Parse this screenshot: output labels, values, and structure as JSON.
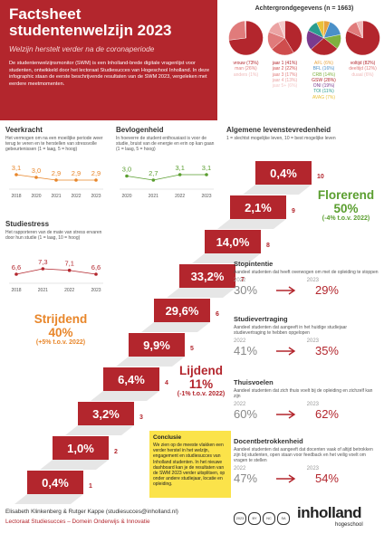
{
  "header": {
    "title": "Factsheet studentenwelzijn 2023",
    "subtitle": "Welzijn herstelt verder na de coronaperiode",
    "intro": "De studentenwelzijnsmonitor (SWM) is een Inholland-brede digitale vragenlijst voor studenten, ontwikkeld door het lectoraat Studiesucces van Hogeschool Inholland. In deze infographic staan de eerste beschrijvende resultaten van de SWM 2023, vergeleken met eerdere meetmomenten."
  },
  "background": {
    "title": "Achtergrondgegevens (n = 1663)",
    "pies": [
      {
        "slices": [
          {
            "label": "vrouw (73%)",
            "value": 73,
            "color": "#b3262d"
          },
          {
            "label": "man (26%)",
            "value": 26,
            "color": "#e07b7b"
          },
          {
            "label": "anders (1%)",
            "value": 1,
            "color": "#efb9b9"
          }
        ]
      },
      {
        "slices": [
          {
            "label": "jaar 1 (41%)",
            "value": 41,
            "color": "#b3262d"
          },
          {
            "label": "jaar 2 (22%)",
            "value": 22,
            "color": "#cf4d4d"
          },
          {
            "label": "jaar 3 (17%)",
            "value": 17,
            "color": "#e07b7b"
          },
          {
            "label": "jaar 4 (13%)",
            "value": 13,
            "color": "#eba3a3"
          },
          {
            "label": "jaar 5+ (6%)",
            "value": 6,
            "color": "#f3c9c9"
          }
        ]
      },
      {
        "slices": [
          {
            "label": "AFL (6%)",
            "value": 6,
            "color": "#e8a33d"
          },
          {
            "label": "BFL (16%)",
            "value": 16,
            "color": "#4a90c8"
          },
          {
            "label": "CRB (14%)",
            "value": 14,
            "color": "#7fb13f"
          },
          {
            "label": "GSW (28%)",
            "value": 28,
            "color": "#b3262d"
          },
          {
            "label": "ONI (19%)",
            "value": 19,
            "color": "#7a3b8f"
          },
          {
            "label": "TOI (11%)",
            "value": 11,
            "color": "#2a9d8f"
          },
          {
            "label": "AVAG (7%)",
            "value": 7,
            "color": "#e9c13a"
          }
        ]
      },
      {
        "slices": [
          {
            "label": "voltijd (82%)",
            "value": 82,
            "color": "#b3262d"
          },
          {
            "label": "deeltijd (12%)",
            "value": 12,
            "color": "#e07b7b"
          },
          {
            "label": "duaal (6%)",
            "value": 6,
            "color": "#efb9b9"
          }
        ]
      }
    ]
  },
  "indicators": [
    {
      "title": "Veerkracht",
      "description": "Het vermogen om na een moeilijke periode weer terug te veren en te herstellen van stressvolle gebeurtenissen (1 = laag, 5 = hoog)",
      "color": "#e8862a",
      "years": [
        2018,
        2020,
        2021,
        2022,
        2023
      ],
      "values": [
        3.1,
        3.0,
        2.9,
        2.9,
        2.9
      ],
      "value_labels": [
        "3,1",
        "3,0",
        "2,9",
        "2,9",
        "2,9"
      ]
    },
    {
      "title": "Bevlogenheid",
      "description": "In hoeverre de student enthousiast is voor de studie, bruist van de energie en erin op kan gaan (1 = laag, 5 = hoog)",
      "color": "#5a9e2f",
      "years": [
        2020,
        2021,
        2022,
        2023
      ],
      "values": [
        3.0,
        2.7,
        3.1,
        3.1
      ],
      "value_labels": [
        "3,0",
        "2,7",
        "3,1",
        "3,1"
      ]
    },
    {
      "title": "Studiestress",
      "description": "Het rapporteren van de mate van stress ervaren door hun studie (1 = laag, 10 = hoog)",
      "color": "#b3262d",
      "years": [
        2018,
        2021,
        2022,
        2023
      ],
      "values": [
        6.6,
        7.3,
        7.1,
        6.6
      ],
      "value_labels": [
        "6,6",
        "7,3",
        "7,1",
        "6,6"
      ]
    }
  ],
  "life_satisfaction": {
    "title": "Algemene levenstevredenheid",
    "subtitle": "1 = slechtst mogelijke leven, 10 = best mogelijke leven",
    "levels": [
      {
        "level": "1",
        "share": "0,4%"
      },
      {
        "level": "2",
        "share": "1,0%"
      },
      {
        "level": "3",
        "share": "3,2%"
      },
      {
        "level": "4",
        "share": "6,4%"
      },
      {
        "level": "5",
        "share": "9,9%"
      },
      {
        "level": "6",
        "share": "29,6%"
      },
      {
        "level": "7",
        "share": "33,2%"
      },
      {
        "level": "8",
        "share": "14,0%"
      },
      {
        "level": "9",
        "share": "2,1%"
      },
      {
        "level": "10",
        "share": "0,4%"
      }
    ],
    "groups": [
      {
        "name": "Florerend",
        "share": "50%",
        "change": "(-4% t.o.v. 2022)",
        "color": "#5a9e2f"
      },
      {
        "name": "Strijdend",
        "share": "40%",
        "change": "(+5% t.o.v. 2022)",
        "color": "#e8862a"
      },
      {
        "name": "Lijdend",
        "share": "11%",
        "change": "(-1% t.o.v. 2022)",
        "color": "#b3262d"
      }
    ]
  },
  "outcomes": [
    {
      "title": "Stopintentie",
      "description": "Aandeel studenten dat heeft overwogen om met de opleiding te stoppen",
      "years": [
        "2022",
        "2023"
      ],
      "values": [
        "30%",
        "29%"
      ]
    },
    {
      "title": "Studievertraging",
      "description": "Aandeel studenten dat aangeeft in het huidige studiejaar studievertraging te hebben opgelopen",
      "years": [
        "2022",
        "2023"
      ],
      "values": [
        "41%",
        "35%"
      ]
    },
    {
      "title": "Thuisvoelen",
      "description": "Aandeel studenten dat zich thuis voelt bij de opleiding en zichzelf kan zijn",
      "years": [
        "2022",
        "2023"
      ],
      "values": [
        "60%",
        "62%"
      ]
    },
    {
      "title": "Docentbetrokkenheid",
      "description": "Aandeel studenten dat aangeeft dat docenten vaak of altijd betrokken zijn bij studenten, open staan voor feedback en het veilig voelt om vragen te stellen",
      "years": [
        "2022",
        "2023"
      ],
      "values": [
        "47%",
        "54%"
      ]
    }
  ],
  "conclusion": {
    "title": "Conclusie",
    "text": "We zien op de meeste vlakken een verder herstel in het welzijn, engagement en studiesucces van Inholland studenten. In het nieuwe dashboard kan je de resultaten van de SWM 2023 verder uitsplitsen, op onder andere studiejaar, locatie en opleiding."
  },
  "footer": {
    "authors": "Elisabeth Klinkenberg & Rutger Kappe (studiesucces@inholland.nl)",
    "department": "Lectoraat Studiesucces – Domein Onderwijs & Innovatie",
    "license": [
      "2023",
      "BY",
      "NC",
      "SA"
    ],
    "logo": "inholland",
    "logo_sub": "hogeschool"
  }
}
